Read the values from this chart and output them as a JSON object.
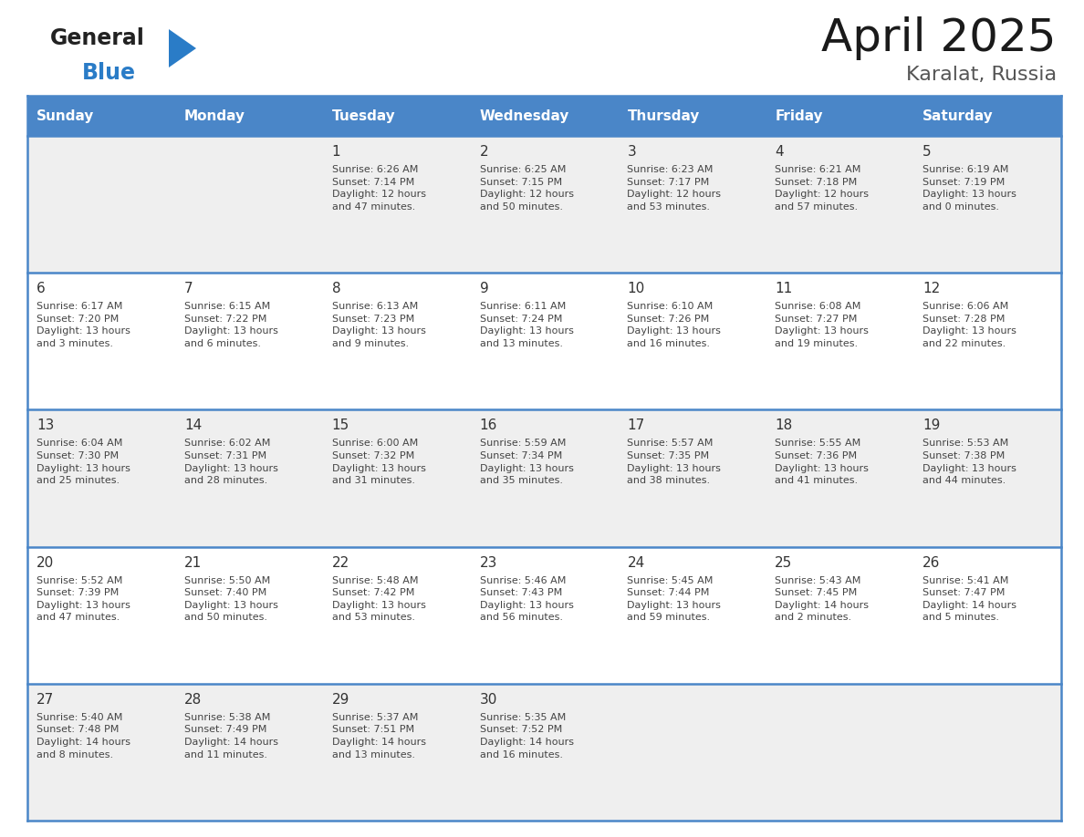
{
  "title": "April 2025",
  "subtitle": "Karalat, Russia",
  "header_color": "#4a86c8",
  "header_text_color": "#ffffff",
  "cell_bg_even": "#efefef",
  "cell_bg_odd": "#ffffff",
  "day_headers": [
    "Sunday",
    "Monday",
    "Tuesday",
    "Wednesday",
    "Thursday",
    "Friday",
    "Saturday"
  ],
  "weeks": [
    [
      {
        "day": "",
        "info": ""
      },
      {
        "day": "",
        "info": ""
      },
      {
        "day": "1",
        "info": "Sunrise: 6:26 AM\nSunset: 7:14 PM\nDaylight: 12 hours\nand 47 minutes."
      },
      {
        "day": "2",
        "info": "Sunrise: 6:25 AM\nSunset: 7:15 PM\nDaylight: 12 hours\nand 50 minutes."
      },
      {
        "day": "3",
        "info": "Sunrise: 6:23 AM\nSunset: 7:17 PM\nDaylight: 12 hours\nand 53 minutes."
      },
      {
        "day": "4",
        "info": "Sunrise: 6:21 AM\nSunset: 7:18 PM\nDaylight: 12 hours\nand 57 minutes."
      },
      {
        "day": "5",
        "info": "Sunrise: 6:19 AM\nSunset: 7:19 PM\nDaylight: 13 hours\nand 0 minutes."
      }
    ],
    [
      {
        "day": "6",
        "info": "Sunrise: 6:17 AM\nSunset: 7:20 PM\nDaylight: 13 hours\nand 3 minutes."
      },
      {
        "day": "7",
        "info": "Sunrise: 6:15 AM\nSunset: 7:22 PM\nDaylight: 13 hours\nand 6 minutes."
      },
      {
        "day": "8",
        "info": "Sunrise: 6:13 AM\nSunset: 7:23 PM\nDaylight: 13 hours\nand 9 minutes."
      },
      {
        "day": "9",
        "info": "Sunrise: 6:11 AM\nSunset: 7:24 PM\nDaylight: 13 hours\nand 13 minutes."
      },
      {
        "day": "10",
        "info": "Sunrise: 6:10 AM\nSunset: 7:26 PM\nDaylight: 13 hours\nand 16 minutes."
      },
      {
        "day": "11",
        "info": "Sunrise: 6:08 AM\nSunset: 7:27 PM\nDaylight: 13 hours\nand 19 minutes."
      },
      {
        "day": "12",
        "info": "Sunrise: 6:06 AM\nSunset: 7:28 PM\nDaylight: 13 hours\nand 22 minutes."
      }
    ],
    [
      {
        "day": "13",
        "info": "Sunrise: 6:04 AM\nSunset: 7:30 PM\nDaylight: 13 hours\nand 25 minutes."
      },
      {
        "day": "14",
        "info": "Sunrise: 6:02 AM\nSunset: 7:31 PM\nDaylight: 13 hours\nand 28 minutes."
      },
      {
        "day": "15",
        "info": "Sunrise: 6:00 AM\nSunset: 7:32 PM\nDaylight: 13 hours\nand 31 minutes."
      },
      {
        "day": "16",
        "info": "Sunrise: 5:59 AM\nSunset: 7:34 PM\nDaylight: 13 hours\nand 35 minutes."
      },
      {
        "day": "17",
        "info": "Sunrise: 5:57 AM\nSunset: 7:35 PM\nDaylight: 13 hours\nand 38 minutes."
      },
      {
        "day": "18",
        "info": "Sunrise: 5:55 AM\nSunset: 7:36 PM\nDaylight: 13 hours\nand 41 minutes."
      },
      {
        "day": "19",
        "info": "Sunrise: 5:53 AM\nSunset: 7:38 PM\nDaylight: 13 hours\nand 44 minutes."
      }
    ],
    [
      {
        "day": "20",
        "info": "Sunrise: 5:52 AM\nSunset: 7:39 PM\nDaylight: 13 hours\nand 47 minutes."
      },
      {
        "day": "21",
        "info": "Sunrise: 5:50 AM\nSunset: 7:40 PM\nDaylight: 13 hours\nand 50 minutes."
      },
      {
        "day": "22",
        "info": "Sunrise: 5:48 AM\nSunset: 7:42 PM\nDaylight: 13 hours\nand 53 minutes."
      },
      {
        "day": "23",
        "info": "Sunrise: 5:46 AM\nSunset: 7:43 PM\nDaylight: 13 hours\nand 56 minutes."
      },
      {
        "day": "24",
        "info": "Sunrise: 5:45 AM\nSunset: 7:44 PM\nDaylight: 13 hours\nand 59 minutes."
      },
      {
        "day": "25",
        "info": "Sunrise: 5:43 AM\nSunset: 7:45 PM\nDaylight: 14 hours\nand 2 minutes."
      },
      {
        "day": "26",
        "info": "Sunrise: 5:41 AM\nSunset: 7:47 PM\nDaylight: 14 hours\nand 5 minutes."
      }
    ],
    [
      {
        "day": "27",
        "info": "Sunrise: 5:40 AM\nSunset: 7:48 PM\nDaylight: 14 hours\nand 8 minutes."
      },
      {
        "day": "28",
        "info": "Sunrise: 5:38 AM\nSunset: 7:49 PM\nDaylight: 14 hours\nand 11 minutes."
      },
      {
        "day": "29",
        "info": "Sunrise: 5:37 AM\nSunset: 7:51 PM\nDaylight: 14 hours\nand 13 minutes."
      },
      {
        "day": "30",
        "info": "Sunrise: 5:35 AM\nSunset: 7:52 PM\nDaylight: 14 hours\nand 16 minutes."
      },
      {
        "day": "",
        "info": ""
      },
      {
        "day": "",
        "info": ""
      },
      {
        "day": "",
        "info": ""
      }
    ]
  ],
  "logo_general_color": "#222222",
  "logo_blue_color": "#2a7cc7",
  "logo_triangle_color": "#2a7cc7",
  "line_color": "#4a86c8",
  "day_num_color": "#333333",
  "info_text_color": "#444444",
  "title_color": "#1a1a1a",
  "subtitle_color": "#555555",
  "fig_width": 11.88,
  "fig_height": 9.18,
  "dpi": 100
}
